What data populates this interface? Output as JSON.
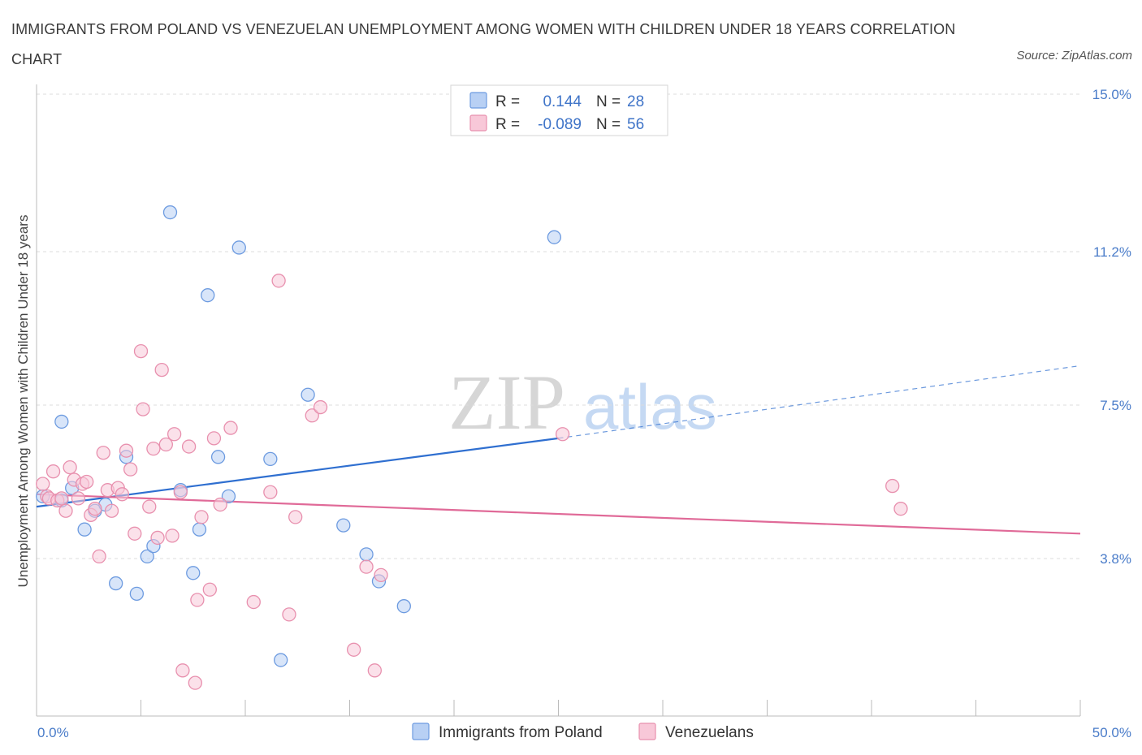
{
  "title": "IMMIGRANTS FROM POLAND VS VENEZUELAN UNEMPLOYMENT AMONG WOMEN WITH CHILDREN UNDER 18 YEARS CORRELATION CHART",
  "source": "Source: ZipAtlas.com",
  "watermark": {
    "zip": "ZIP",
    "atlas": "atlas"
  },
  "legend": {
    "r_label": "R =",
    "n_label": "N =",
    "rows": [
      {
        "r": "0.144",
        "n": "28",
        "fill": "#b8d0f4",
        "stroke": "#6d9be0"
      },
      {
        "r": "-0.089",
        "n": "56",
        "fill": "#f8c8d8",
        "stroke": "#e890ae"
      }
    ]
  },
  "chart_data": {
    "type": "scatter",
    "title": "IMMIGRANTS FROM POLAND VS VENEZUELAN UNEMPLOYMENT AMONG WOMEN WITH CHILDREN UNDER 18 YEARS CORRELATION CHART",
    "xlabel": "",
    "ylabel": "Unemployment Among Women with Children Under 18 years",
    "xlim": [
      0,
      50
    ],
    "ylim": [
      0,
      15
    ],
    "x_tick_labels": [
      {
        "value": 0,
        "label": "0.0%"
      },
      {
        "value": 50,
        "label": "50.0%"
      }
    ],
    "y_tick_labels": [
      {
        "value": 3.8,
        "label": "3.8%"
      },
      {
        "value": 7.5,
        "label": "7.5%"
      },
      {
        "value": 11.2,
        "label": "11.2%"
      },
      {
        "value": 15.0,
        "label": "15.0%"
      }
    ],
    "grid": "horizontal-dashed",
    "legend_position": "bottom-center",
    "series": [
      {
        "name": "Immigrants from Poland",
        "color": "#6d9be0",
        "fill": "#b8d0f4",
        "trend_color": "#2f6fd0",
        "trend": {
          "x0": 0,
          "y0": 5.05,
          "x1": 25,
          "y1": 6.7,
          "dashed_to_x": 50,
          "dashed_to_y": 8.45
        },
        "points": [
          [
            0.3,
            5.3
          ],
          [
            1.2,
            5.2
          ],
          [
            1.2,
            7.1
          ],
          [
            1.7,
            5.5
          ],
          [
            2.3,
            4.5
          ],
          [
            2.8,
            4.95
          ],
          [
            3.3,
            5.1
          ],
          [
            3.8,
            3.2
          ],
          [
            4.3,
            6.25
          ],
          [
            4.8,
            2.95
          ],
          [
            5.3,
            3.85
          ],
          [
            5.6,
            4.1
          ],
          [
            6.4,
            12.15
          ],
          [
            6.9,
            5.45
          ],
          [
            7.5,
            3.45
          ],
          [
            7.8,
            4.5
          ],
          [
            8.2,
            10.15
          ],
          [
            8.7,
            6.25
          ],
          [
            9.2,
            5.3
          ],
          [
            9.7,
            11.3
          ],
          [
            11.2,
            6.2
          ],
          [
            11.7,
            1.35
          ],
          [
            13.0,
            7.75
          ],
          [
            14.7,
            4.6
          ],
          [
            15.8,
            3.9
          ],
          [
            16.4,
            3.25
          ],
          [
            17.6,
            2.65
          ],
          [
            24.8,
            11.55
          ]
        ]
      },
      {
        "name": "Venezuelans",
        "color": "#e890ae",
        "fill": "#f8c8d8",
        "trend_color": "#e06a98",
        "trend": {
          "x0": 0,
          "y0": 5.35,
          "x1": 50,
          "y1": 4.4
        },
        "points": [
          [
            0.3,
            5.6
          ],
          [
            0.5,
            5.3
          ],
          [
            0.6,
            5.25
          ],
          [
            0.8,
            5.9
          ],
          [
            1.0,
            5.2
          ],
          [
            1.2,
            5.25
          ],
          [
            1.4,
            4.95
          ],
          [
            1.6,
            6.0
          ],
          [
            1.8,
            5.7
          ],
          [
            2.0,
            5.25
          ],
          [
            2.2,
            5.6
          ],
          [
            2.4,
            5.65
          ],
          [
            2.6,
            4.85
          ],
          [
            2.8,
            5.0
          ],
          [
            3.0,
            3.85
          ],
          [
            3.2,
            6.35
          ],
          [
            3.4,
            5.45
          ],
          [
            3.6,
            4.95
          ],
          [
            3.9,
            5.5
          ],
          [
            4.1,
            5.35
          ],
          [
            4.3,
            6.4
          ],
          [
            4.5,
            5.95
          ],
          [
            4.7,
            4.4
          ],
          [
            5.0,
            8.8
          ],
          [
            5.1,
            7.4
          ],
          [
            5.4,
            5.05
          ],
          [
            5.6,
            6.45
          ],
          [
            5.8,
            4.3
          ],
          [
            6.0,
            8.35
          ],
          [
            6.2,
            6.55
          ],
          [
            6.5,
            4.35
          ],
          [
            6.6,
            6.8
          ],
          [
            6.9,
            5.4
          ],
          [
            7.0,
            1.1
          ],
          [
            7.3,
            6.5
          ],
          [
            7.6,
            0.8
          ],
          [
            7.7,
            2.8
          ],
          [
            7.9,
            4.8
          ],
          [
            8.3,
            3.05
          ],
          [
            8.5,
            6.7
          ],
          [
            8.8,
            5.1
          ],
          [
            9.3,
            6.95
          ],
          [
            10.4,
            2.75
          ],
          [
            11.2,
            5.4
          ],
          [
            11.6,
            10.5
          ],
          [
            12.1,
            2.45
          ],
          [
            12.4,
            4.8
          ],
          [
            13.2,
            7.25
          ],
          [
            13.6,
            7.45
          ],
          [
            15.2,
            1.6
          ],
          [
            15.8,
            3.6
          ],
          [
            16.2,
            1.1
          ],
          [
            16.5,
            3.4
          ],
          [
            25.2,
            6.8
          ],
          [
            41.0,
            5.55
          ],
          [
            41.4,
            5.0
          ]
        ]
      }
    ]
  }
}
